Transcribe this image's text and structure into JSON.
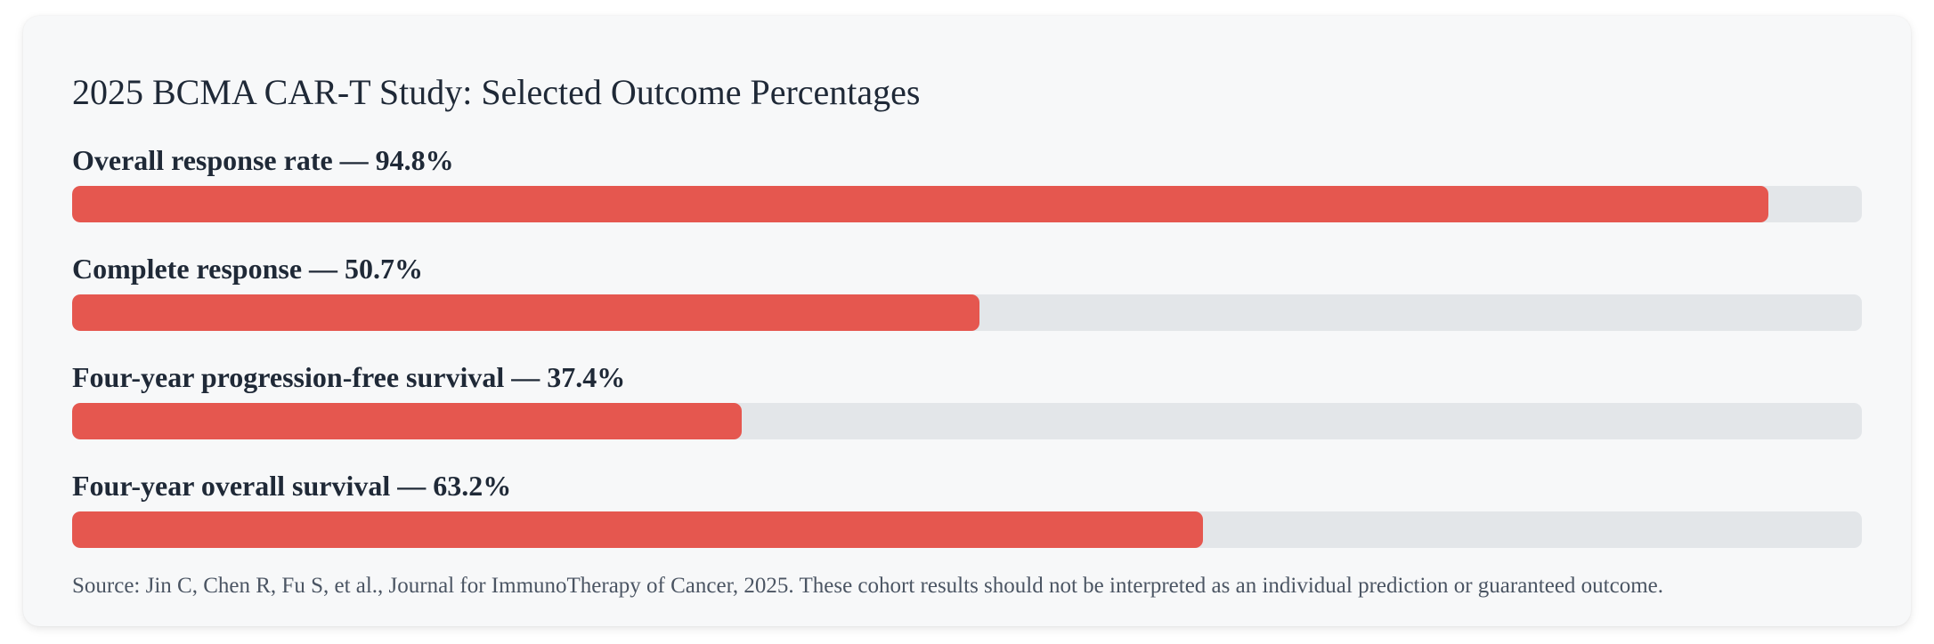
{
  "chart_data": {
    "type": "bar",
    "orientation": "horizontal",
    "title": "2025 BCMA CAR-T Study: Selected Outcome Percentages",
    "unit": "%",
    "xlim": [
      0,
      100
    ],
    "grid": false,
    "categories": [
      "Overall response rate",
      "Complete response",
      "Four-year progression-free survival",
      "Four-year overall survival"
    ],
    "values": [
      94.8,
      50.7,
      37.4,
      63.2
    ],
    "labels": [
      "Overall response rate — 94.8%",
      "Complete response — 50.7%",
      "Four-year progression-free survival — 37.4%",
      "Four-year overall survival — 63.2%"
    ],
    "bar_color": "#e5574f",
    "track_color": "#e3e6e9",
    "source": "Source: Jin C, Chen R, Fu S, et al., Journal for ImmunoTherapy of Cancer, 2025. These cohort results should not be interpreted as an individual prediction or guaranteed outcome."
  }
}
